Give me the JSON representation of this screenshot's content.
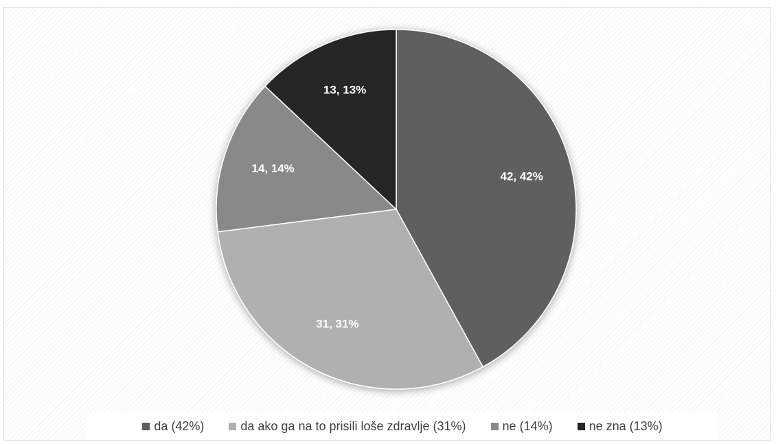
{
  "chart_data": {
    "type": "pie",
    "title": "",
    "slices": [
      {
        "name": "da (42%)",
        "value": 42,
        "label": "42, 42%",
        "color": "#5f5f5f"
      },
      {
        "name": "da ako ga na to prisili loše zdravlje (31%)",
        "value": 31,
        "label": "31, 31%",
        "color": "#b0b0b0"
      },
      {
        "name": "ne (14%)",
        "value": 14,
        "label": "14, 14%",
        "color": "#898989"
      },
      {
        "name": "ne zna (13%)",
        "value": 13,
        "label": "13, 13%",
        "color": "#262626"
      }
    ],
    "start_angle_deg": 0,
    "direction": "clockwise",
    "legend_position": "bottom"
  },
  "legend": {
    "items": [
      {
        "label": "da (42%)",
        "color": "#5f5f5f"
      },
      {
        "label": "da ako ga na to prisili loše zdravlje (31%)",
        "color": "#b0b0b0"
      },
      {
        "label": "ne (14%)",
        "color": "#898989"
      },
      {
        "label": "ne zna (13%)",
        "color": "#262626"
      }
    ]
  }
}
